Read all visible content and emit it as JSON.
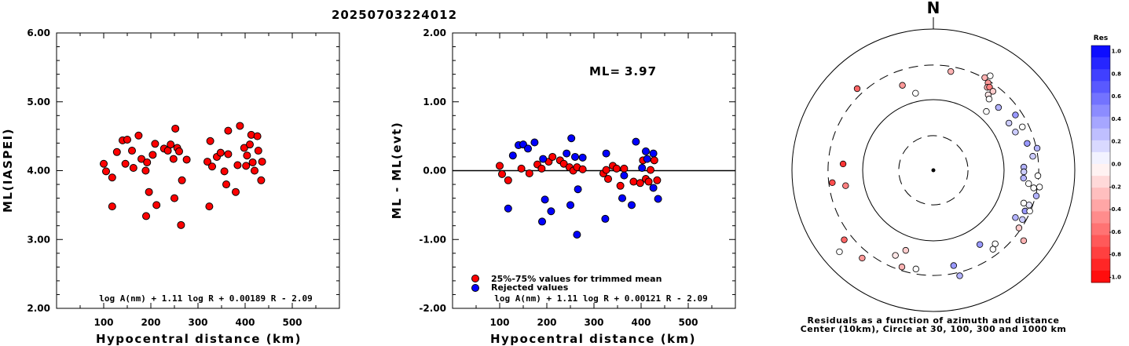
{
  "title": "20250703224012",
  "chart_data": [
    {
      "type": "scatter",
      "ylabel": "ML(IASPEI)",
      "xlabel": "Hypocentral distance (km)",
      "xlim": [
        0,
        600
      ],
      "ylim": [
        2.0,
        6.0
      ],
      "xticks": [
        "100",
        "200",
        "300",
        "400",
        "500"
      ],
      "yticks": [
        "2.00",
        "3.00",
        "4.00",
        "5.00",
        "6.00"
      ],
      "formula": "log A(nm) + 1.11 log R + 0.00189 R - 2.09",
      "marker_color": "#ff0000",
      "points": [
        [
          100,
          4.1
        ],
        [
          105,
          3.99
        ],
        [
          118,
          3.9
        ],
        [
          118,
          3.48
        ],
        [
          128,
          4.27
        ],
        [
          140,
          4.44
        ],
        [
          146,
          4.1
        ],
        [
          150,
          4.45
        ],
        [
          160,
          4.29
        ],
        [
          163,
          4.04
        ],
        [
          174,
          4.51
        ],
        [
          180,
          4.17
        ],
        [
          189,
          4.0
        ],
        [
          190,
          3.34
        ],
        [
          192,
          4.12
        ],
        [
          196,
          3.69
        ],
        [
          204,
          4.23
        ],
        [
          209,
          4.39
        ],
        [
          212,
          3.5
        ],
        [
          228,
          4.32
        ],
        [
          236,
          4.29
        ],
        [
          242,
          4.38
        ],
        [
          248,
          4.17
        ],
        [
          250,
          3.6
        ],
        [
          252,
          4.61
        ],
        [
          256,
          4.33
        ],
        [
          260,
          4.28
        ],
        [
          264,
          3.21
        ],
        [
          266,
          3.86
        ],
        [
          276,
          4.16
        ],
        [
          320,
          4.13
        ],
        [
          324,
          3.48
        ],
        [
          326,
          4.43
        ],
        [
          330,
          4.06
        ],
        [
          340,
          4.2
        ],
        [
          348,
          4.26
        ],
        [
          356,
          3.99
        ],
        [
          360,
          3.8
        ],
        [
          364,
          4.24
        ],
        [
          364,
          4.58
        ],
        [
          380,
          3.69
        ],
        [
          384,
          4.08
        ],
        [
          389,
          4.65
        ],
        [
          398,
          4.33
        ],
        [
          402,
          4.07
        ],
        [
          404,
          4.22
        ],
        [
          410,
          4.38
        ],
        [
          413,
          4.52
        ],
        [
          416,
          4.12
        ],
        [
          420,
          4.0
        ],
        [
          426,
          4.5
        ],
        [
          428,
          4.29
        ],
        [
          434,
          3.86
        ],
        [
          436,
          4.13
        ]
      ]
    },
    {
      "type": "scatter",
      "ylabel": "ML - ML(evt)",
      "xlabel": "Hypocentral distance (km)",
      "xlim": [
        0,
        600
      ],
      "ylim": [
        -2.0,
        2.0
      ],
      "xticks": [
        "100",
        "200",
        "300",
        "400",
        "500"
      ],
      "yticks": [
        "-2.00",
        "-1.00",
        "0.00",
        "1.00",
        "2.00"
      ],
      "ml_label": "ML=",
      "ml_value": "3.97",
      "formula": "log A(nm) + 1.11 log R + 0.00121 R - 2.09",
      "legend": [
        {
          "label": "25%-75% values for trimmed mean",
          "color": "#ff0000"
        },
        {
          "label": "Rejected values",
          "color": "#0000ff"
        }
      ],
      "series": [
        {
          "name": "25%-75% values for trimmed mean",
          "color": "#ff0000",
          "points": [
            [
              100,
              0.07
            ],
            [
              105,
              -0.05
            ],
            [
              118,
              -0.14
            ],
            [
              146,
              0.03
            ],
            [
              163,
              -0.04
            ],
            [
              180,
              0.09
            ],
            [
              189,
              0.03
            ],
            [
              204,
              0.13
            ],
            [
              212,
              0.2
            ],
            [
              228,
              0.15
            ],
            [
              236,
              0.1
            ],
            [
              248,
              0.05
            ],
            [
              256,
              0.0
            ],
            [
              264,
              0.05
            ],
            [
              276,
              0.02
            ],
            [
              320,
              -0.04
            ],
            [
              326,
              0.01
            ],
            [
              330,
              -0.12
            ],
            [
              340,
              0.07
            ],
            [
              348,
              0.03
            ],
            [
              356,
              -0.22
            ],
            [
              364,
              0.03
            ],
            [
              384,
              -0.16
            ],
            [
              398,
              -0.18
            ],
            [
              404,
              0.15
            ],
            [
              410,
              -0.12
            ],
            [
              416,
              -0.16
            ],
            [
              420,
              0.01
            ],
            [
              428,
              0.15
            ],
            [
              434,
              -0.14
            ]
          ]
        },
        {
          "name": "Rejected values",
          "color": "#0000ff",
          "points": [
            [
              118,
              -0.55
            ],
            [
              128,
              0.22
            ],
            [
              140,
              0.37
            ],
            [
              150,
              0.38
            ],
            [
              160,
              0.32
            ],
            [
              174,
              0.41
            ],
            [
              190,
              -0.74
            ],
            [
              192,
              0.17
            ],
            [
              196,
              -0.42
            ],
            [
              209,
              -0.59
            ],
            [
              242,
              0.25
            ],
            [
              250,
              -0.5
            ],
            [
              252,
              0.47
            ],
            [
              260,
              0.2
            ],
            [
              266,
              -0.27
            ],
            [
              276,
              0.19
            ],
            [
              324,
              -0.7
            ],
            [
              326,
              0.25
            ],
            [
              360,
              -0.4
            ],
            [
              364,
              -0.07
            ],
            [
              380,
              -0.5
            ],
            [
              389,
              0.42
            ],
            [
              402,
              0.04
            ],
            [
              410,
              0.28
            ],
            [
              413,
              0.17
            ],
            [
              426,
              -0.25
            ],
            [
              426,
              0.25
            ],
            [
              436,
              -0.41
            ],
            [
              264,
              -0.93
            ]
          ]
        }
      ]
    },
    {
      "type": "polar",
      "north_label": "N",
      "caption_line1": "Residuals as a function of azimuth and distance",
      "caption_line2": "Center (10km), Circle at 30, 100, 300 and 1000 km",
      "colorbar_title": "Res",
      "colorbar_ticks": [
        "1.0",
        "0.8",
        "0.6",
        "0.4",
        "0.2",
        "0.0",
        "-0.2",
        "-0.4",
        "-0.6",
        "-0.8",
        "-1.0"
      ],
      "points": [
        {
          "az": 29,
          "r": 0.75,
          "res": -0.3
        },
        {
          "az": 31,
          "r": 0.78,
          "res": 0.0
        },
        {
          "az": 32,
          "r": 0.73,
          "res": -0.4
        },
        {
          "az": 33,
          "r": 0.7,
          "res": -0.3
        },
        {
          "az": 34,
          "r": 0.71,
          "res": -0.5
        },
        {
          "az": 36,
          "r": 0.66,
          "res": -0.1
        },
        {
          "az": 37,
          "r": 0.7,
          "res": -0.2
        },
        {
          "az": 38,
          "r": 0.64,
          "res": 0.0
        },
        {
          "az": 46,
          "r": 0.64,
          "res": 0.3
        },
        {
          "az": 42,
          "r": 0.56,
          "res": 0.0
        },
        {
          "az": 56,
          "r": 0.7,
          "res": 0.4
        },
        {
          "az": 58,
          "r": 0.63,
          "res": 0.2
        },
        {
          "az": 65,
          "r": 0.64,
          "res": 0.2
        },
        {
          "az": 64,
          "r": 0.7,
          "res": 0.0
        },
        {
          "az": 74,
          "r": 0.69,
          "res": 0.4
        },
        {
          "az": 78,
          "r": 0.75,
          "res": 0.3
        },
        {
          "az": 82,
          "r": 0.71,
          "res": 0.2
        },
        {
          "az": 88,
          "r": 0.64,
          "res": 0.3
        },
        {
          "az": 91,
          "r": 0.64,
          "res": 0.2
        },
        {
          "az": 93,
          "r": 0.74,
          "res": 0.0
        },
        {
          "az": 95,
          "r": 0.64,
          "res": 0.3
        },
        {
          "az": 98,
          "r": 0.68,
          "res": 0.0
        },
        {
          "az": 100,
          "r": 0.72,
          "res": 0.0
        },
        {
          "az": 99,
          "r": 0.76,
          "res": 0.0
        },
        {
          "az": 104,
          "r": 0.75,
          "res": 0.3
        },
        {
          "az": 110,
          "r": 0.72,
          "res": 0.1
        },
        {
          "az": 110,
          "r": 0.68,
          "res": 0.0
        },
        {
          "az": 114,
          "r": 0.71,
          "res": 0.4
        },
        {
          "az": 113,
          "r": 0.74,
          "res": 0.0
        },
        {
          "az": 119,
          "r": 0.72,
          "res": 0.2
        },
        {
          "az": 120,
          "r": 0.67,
          "res": 0.3
        },
        {
          "az": 124,
          "r": 0.73,
          "res": -0.2
        },
        {
          "az": 128,
          "r": 0.81,
          "res": -0.3
        },
        {
          "az": 140,
          "r": 0.68,
          "res": 0.0
        },
        {
          "az": 143,
          "r": 0.7,
          "res": 0.0
        },
        {
          "az": 148,
          "r": 0.62,
          "res": 0.4
        },
        {
          "az": 166,
          "r": 0.77,
          "res": 0.3
        },
        {
          "az": 168,
          "r": 0.69,
          "res": 0.4
        },
        {
          "az": 190,
          "r": 0.71,
          "res": 0.0
        },
        {
          "az": 198,
          "r": 0.72,
          "res": -0.3
        },
        {
          "az": 199,
          "r": 0.6,
          "res": -0.2
        },
        {
          "az": 204,
          "r": 0.66,
          "res": -0.1
        },
        {
          "az": 219,
          "r": 0.8,
          "res": -0.4
        },
        {
          "az": 232,
          "r": 0.8,
          "res": -0.6
        },
        {
          "az": 229,
          "r": 0.88,
          "res": 0.0
        },
        {
          "az": 260,
          "r": 0.63,
          "res": -0.5
        },
        {
          "az": 263,
          "r": 0.72,
          "res": -0.7
        },
        {
          "az": 274,
          "r": 0.64,
          "res": -0.8
        },
        {
          "az": 317,
          "r": 0.79,
          "res": -0.6
        },
        {
          "az": 340,
          "r": 0.64,
          "res": -0.4
        },
        {
          "az": 347,
          "r": 0.56,
          "res": 0.0
        },
        {
          "az": 10,
          "r": 0.71,
          "res": -0.3
        }
      ]
    }
  ]
}
